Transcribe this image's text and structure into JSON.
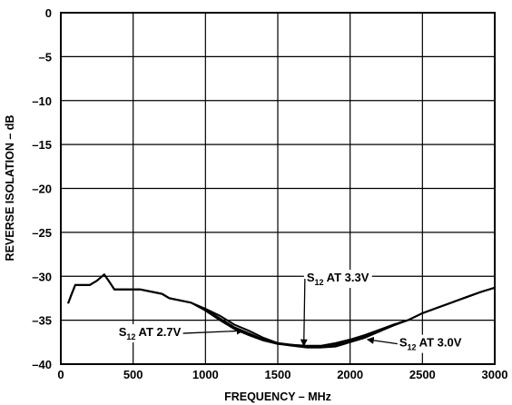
{
  "chart_data": {
    "type": "line",
    "title": "",
    "xlabel": "FREQUENCY – MHz",
    "ylabel": "REVERSE ISOLATION – dB",
    "xlim": [
      0,
      3000
    ],
    "ylim": [
      -40,
      0
    ],
    "x_ticks": [
      0,
      500,
      1000,
      1500,
      2000,
      2500,
      3000
    ],
    "y_ticks": [
      0,
      -5,
      -10,
      -15,
      -20,
      -25,
      -30,
      -35,
      -40
    ],
    "x_tick_labels": [
      "0",
      "500",
      "1000",
      "1500",
      "2000",
      "2500",
      "3000"
    ],
    "y_tick_labels": [
      "0",
      "–5",
      "–10",
      "–15",
      "–20",
      "–25",
      "–30",
      "–35",
      "–40"
    ],
    "grid": true,
    "series": [
      {
        "name": "S12 AT 3.3V",
        "x": [
          50,
          75,
          100,
          125,
          200,
          250,
          300,
          330,
          370,
          500,
          550,
          700,
          750,
          900,
          1000,
          1100,
          1200,
          1300,
          1400,
          1500,
          1600,
          1700,
          1800,
          1900,
          2000,
          2100,
          2200,
          2300,
          2400,
          2500,
          2600,
          2700,
          2800,
          2900,
          3000
        ],
        "y": [
          -33.1,
          -32.0,
          -31.0,
          -31.0,
          -31.0,
          -30.5,
          -29.8,
          -30.5,
          -31.5,
          -31.5,
          -31.5,
          -32.0,
          -32.5,
          -33.0,
          -33.7,
          -34.5,
          -35.5,
          -36.2,
          -37.0,
          -37.6,
          -37.8,
          -38.1,
          -38.1,
          -38.0,
          -37.5,
          -37.0,
          -36.3,
          -35.5,
          -35.0,
          -34.2,
          -33.6,
          -33.0,
          -32.4,
          -31.8,
          -31.3
        ]
      },
      {
        "name": "S12 AT 3.0V",
        "x": [
          50,
          75,
          100,
          125,
          200,
          250,
          300,
          330,
          370,
          500,
          550,
          700,
          750,
          900,
          1000,
          1100,
          1200,
          1300,
          1400,
          1500,
          1600,
          1700,
          1800,
          1900,
          2000,
          2100,
          2200,
          2300,
          2400,
          2500,
          2600,
          2700,
          2800,
          2900,
          3000
        ],
        "y": [
          -33.1,
          -32.0,
          -31.0,
          -31.0,
          -31.0,
          -30.5,
          -29.8,
          -30.5,
          -31.5,
          -31.5,
          -31.5,
          -32.0,
          -32.5,
          -33.0,
          -33.8,
          -34.8,
          -35.8,
          -36.5,
          -37.2,
          -37.7,
          -37.9,
          -38.1,
          -38.1,
          -37.8,
          -37.3,
          -36.8,
          -36.3,
          -35.6,
          -35.0,
          -34.2,
          -33.6,
          -33.0,
          -32.4,
          -31.8,
          -31.3
        ]
      },
      {
        "name": "S12 AT 2.7V",
        "x": [
          50,
          75,
          100,
          125,
          200,
          250,
          300,
          330,
          370,
          500,
          550,
          700,
          750,
          900,
          1000,
          1100,
          1200,
          1300,
          1400,
          1500,
          1600,
          1700,
          1800,
          1900,
          2000,
          2100,
          2200,
          2300,
          2400,
          2500,
          2600,
          2700,
          2800,
          2900,
          3000
        ],
        "y": [
          -33.1,
          -32.0,
          -31.0,
          -31.0,
          -31.0,
          -30.5,
          -29.8,
          -30.5,
          -31.5,
          -31.5,
          -31.5,
          -32.0,
          -32.5,
          -33.0,
          -33.9,
          -35.0,
          -36.0,
          -36.7,
          -37.3,
          -37.7,
          -37.8,
          -37.9,
          -37.9,
          -37.6,
          -37.2,
          -36.7,
          -36.1,
          -35.5,
          -35.0,
          -34.2,
          -33.6,
          -33.0,
          -32.4,
          -31.8,
          -31.3
        ]
      }
    ],
    "annotations": [
      {
        "base": "S",
        "sub": "12",
        "rest": " AT 3.3V",
        "x": 1700,
        "y": -30.6,
        "target_x": 1680,
        "target_y": -37.9
      },
      {
        "base": "S",
        "sub": "12",
        "rest": " AT 2.7V",
        "x": 400,
        "y": -36.8,
        "target_x": 1260,
        "target_y": -36.2
      },
      {
        "base": "S",
        "sub": "12",
        "rest": " AT 3.0V",
        "x": 2340,
        "y": -38.0,
        "target_x": 2120,
        "target_y": -37.2
      }
    ]
  }
}
